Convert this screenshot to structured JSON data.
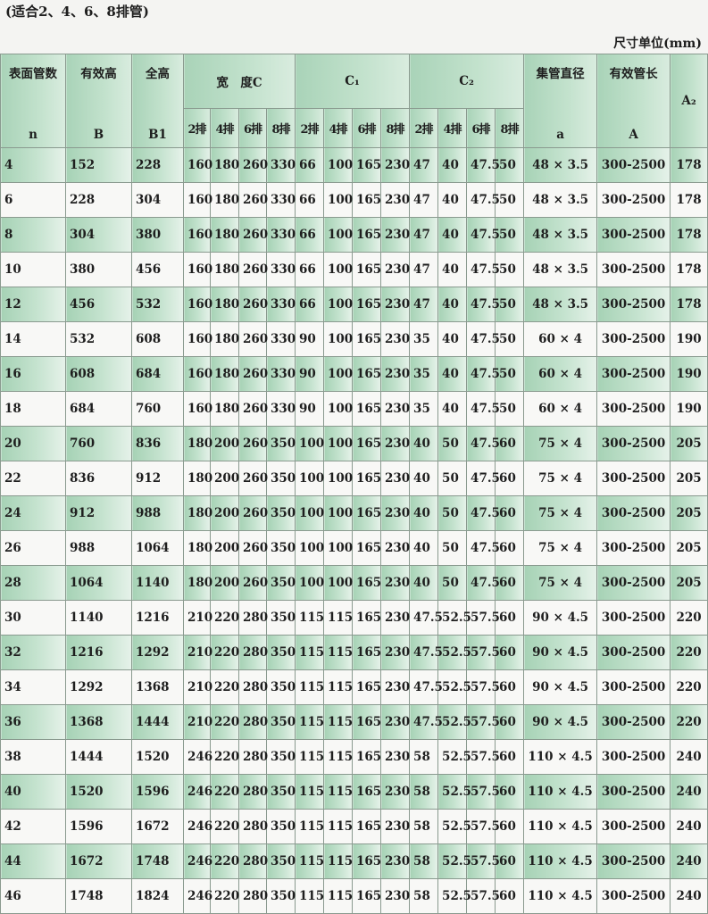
{
  "note": "(适合2、4、6、8排管)",
  "unit": "尺寸单位(mm)",
  "header": {
    "n_cn": "表面管数",
    "n": "n",
    "b_cn": "有效高",
    "b": "B",
    "b1_cn": "全高",
    "b1": "B1",
    "c": "宽　度C",
    "c1": "C₁",
    "c2": "C₂",
    "a_cn": "集管直径",
    "a": "a",
    "A_cn": "有效管长",
    "A": "A",
    "a2": "A₂",
    "rows_labels": [
      "2排",
      "4排",
      "6排",
      "8排"
    ]
  },
  "rows": [
    [
      "4",
      "152",
      "228",
      "160",
      "180",
      "260",
      "330",
      "66",
      "100",
      "165",
      "230",
      "47",
      "40",
      "47.5",
      "50",
      "48 × 3.5",
      "300-2500",
      "178"
    ],
    [
      "6",
      "228",
      "304",
      "160",
      "180",
      "260",
      "330",
      "66",
      "100",
      "165",
      "230",
      "47",
      "40",
      "47.5",
      "50",
      "48 × 3.5",
      "300-2500",
      "178"
    ],
    [
      "8",
      "304",
      "380",
      "160",
      "180",
      "260",
      "330",
      "66",
      "100",
      "165",
      "230",
      "47",
      "40",
      "47.5",
      "50",
      "48 × 3.5",
      "300-2500",
      "178"
    ],
    [
      "10",
      "380",
      "456",
      "160",
      "180",
      "260",
      "330",
      "66",
      "100",
      "165",
      "230",
      "47",
      "40",
      "47.5",
      "50",
      "48 × 3.5",
      "300-2500",
      "178"
    ],
    [
      "12",
      "456",
      "532",
      "160",
      "180",
      "260",
      "330",
      "66",
      "100",
      "165",
      "230",
      "47",
      "40",
      "47.5",
      "50",
      "48 × 3.5",
      "300-2500",
      "178"
    ],
    [
      "14",
      "532",
      "608",
      "160",
      "180",
      "260",
      "330",
      "90",
      "100",
      "165",
      "230",
      "35",
      "40",
      "47.5",
      "50",
      "60 × 4",
      "300-2500",
      "190"
    ],
    [
      "16",
      "608",
      "684",
      "160",
      "180",
      "260",
      "330",
      "90",
      "100",
      "165",
      "230",
      "35",
      "40",
      "47.5",
      "50",
      "60 × 4",
      "300-2500",
      "190"
    ],
    [
      "18",
      "684",
      "760",
      "160",
      "180",
      "260",
      "330",
      "90",
      "100",
      "165",
      "230",
      "35",
      "40",
      "47.5",
      "50",
      "60 × 4",
      "300-2500",
      "190"
    ],
    [
      "20",
      "760",
      "836",
      "180",
      "200",
      "260",
      "350",
      "100",
      "100",
      "165",
      "230",
      "40",
      "50",
      "47.5",
      "60",
      "75 × 4",
      "300-2500",
      "205"
    ],
    [
      "22",
      "836",
      "912",
      "180",
      "200",
      "260",
      "350",
      "100",
      "100",
      "165",
      "230",
      "40",
      "50",
      "47.5",
      "60",
      "75 × 4",
      "300-2500",
      "205"
    ],
    [
      "24",
      "912",
      "988",
      "180",
      "200",
      "260",
      "350",
      "100",
      "100",
      "165",
      "230",
      "40",
      "50",
      "47.5",
      "60",
      "75 × 4",
      "300-2500",
      "205"
    ],
    [
      "26",
      "988",
      "1064",
      "180",
      "200",
      "260",
      "350",
      "100",
      "100",
      "165",
      "230",
      "40",
      "50",
      "47.5",
      "60",
      "75 × 4",
      "300-2500",
      "205"
    ],
    [
      "28",
      "1064",
      "1140",
      "180",
      "200",
      "260",
      "350",
      "100",
      "100",
      "165",
      "230",
      "40",
      "50",
      "47.5",
      "60",
      "75 × 4",
      "300-2500",
      "205"
    ],
    [
      "30",
      "1140",
      "1216",
      "210",
      "220",
      "280",
      "350",
      "115",
      "115",
      "165",
      "230",
      "47.5",
      "52.5",
      "57.5",
      "60",
      "90 × 4.5",
      "300-2500",
      "220"
    ],
    [
      "32",
      "1216",
      "1292",
      "210",
      "220",
      "280",
      "350",
      "115",
      "115",
      "165",
      "230",
      "47.5",
      "52.5",
      "57.5",
      "60",
      "90 × 4.5",
      "300-2500",
      "220"
    ],
    [
      "34",
      "1292",
      "1368",
      "210",
      "220",
      "280",
      "350",
      "115",
      "115",
      "165",
      "230",
      "47.5",
      "52.5",
      "57.5",
      "60",
      "90 × 4.5",
      "300-2500",
      "220"
    ],
    [
      "36",
      "1368",
      "1444",
      "210",
      "220",
      "280",
      "350",
      "115",
      "115",
      "165",
      "230",
      "47.5",
      "52.5",
      "57.5",
      "60",
      "90 × 4.5",
      "300-2500",
      "220"
    ],
    [
      "38",
      "1444",
      "1520",
      "246",
      "220",
      "280",
      "350",
      "115",
      "115",
      "165",
      "230",
      "58",
      "52.5",
      "57.5",
      "60",
      "110 × 4.5",
      "300-2500",
      "240"
    ],
    [
      "40",
      "1520",
      "1596",
      "246",
      "220",
      "280",
      "350",
      "115",
      "115",
      "165",
      "230",
      "58",
      "52.5",
      "57.5",
      "60",
      "110 × 4.5",
      "300-2500",
      "240"
    ],
    [
      "42",
      "1596",
      "1672",
      "246",
      "220",
      "280",
      "350",
      "115",
      "115",
      "165",
      "230",
      "58",
      "52.5",
      "57.5",
      "60",
      "110 × 4.5",
      "300-2500",
      "240"
    ],
    [
      "44",
      "1672",
      "1748",
      "246",
      "220",
      "280",
      "350",
      "115",
      "115",
      "165",
      "230",
      "58",
      "52.5",
      "57.5",
      "60",
      "110 × 4.5",
      "300-2500",
      "240"
    ],
    [
      "46",
      "1748",
      "1824",
      "246",
      "220",
      "280",
      "350",
      "115",
      "115",
      "165",
      "230",
      "58",
      "52.5",
      "57.5",
      "60",
      "110 × 4.5",
      "300-2500",
      "240"
    ]
  ]
}
